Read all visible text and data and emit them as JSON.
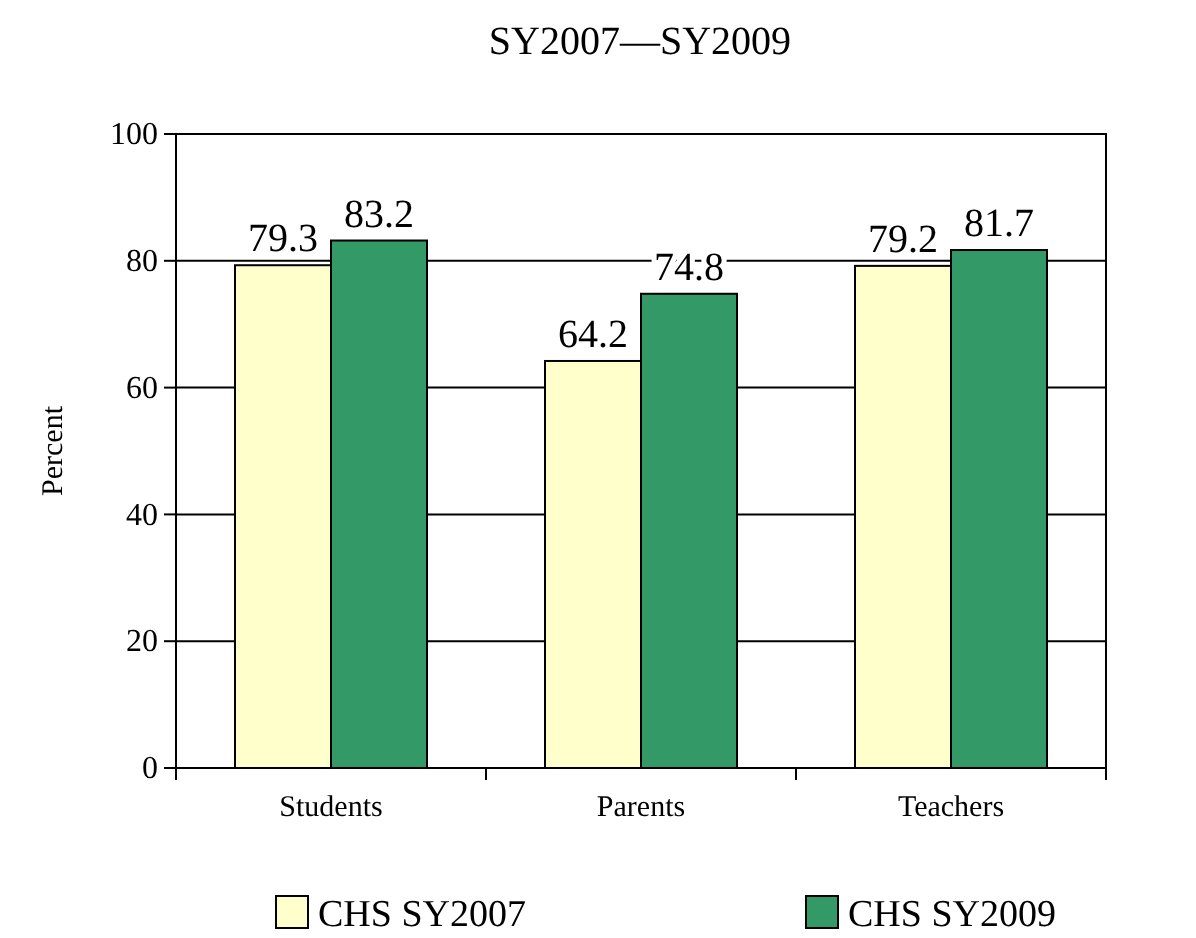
{
  "chart_data": {
    "type": "bar",
    "title": "SY2007—SY2009",
    "ylabel": "Percent",
    "categories": [
      "Students",
      "Parents",
      "Teachers"
    ],
    "series": [
      {
        "name": "CHS SY2007",
        "color": "#ffffcc",
        "values": [
          79.3,
          64.2,
          79.2
        ]
      },
      {
        "name": "CHS SY2009",
        "color": "#339966",
        "values": [
          83.2,
          74.8,
          81.7
        ]
      }
    ],
    "ylim": [
      0,
      100
    ],
    "yticks": [
      0,
      20,
      40,
      60,
      80,
      100
    ],
    "grid": "y",
    "legend": "bottom",
    "data_labels": true
  }
}
